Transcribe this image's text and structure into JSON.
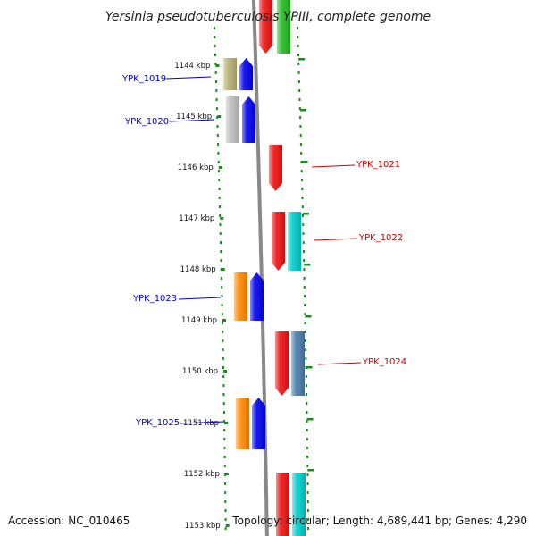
{
  "title": "Yersinia pseudotuberculosis YPIII, complete genome",
  "footer": {
    "accession": "Accession: NC_010465",
    "topology": "Topology: circular; Length: 4,689,441 bp; Genes: 4,290"
  },
  "ticks": [
    "1144 kbp",
    "1145 kbp",
    "1146 kbp",
    "1147 kbp",
    "1148 kbp",
    "1149 kbp",
    "1150 kbp",
    "1151 kbp",
    "1152 kbp",
    "1153 kbp"
  ],
  "colors": {
    "left_label": "#0000cc",
    "right_label": "#cc0000",
    "ruler": "#1a8c1a",
    "backbone": "#888888",
    "red": "#ee1111",
    "blue": "#0000ee",
    "green": "#22bb22",
    "olive": "#b5b070",
    "gray": "#bdbdbd",
    "orange": "#ff8800",
    "cyan": "#00cccc",
    "steelblue": "#4a7aaa"
  },
  "genes": [
    {
      "label": "",
      "side": "right",
      "strand": "minus",
      "pair": [
        "red",
        "green"
      ]
    },
    {
      "label": "YPK_1019",
      "side": "left",
      "strand": "plus",
      "pair": [
        "olive",
        "blue"
      ]
    },
    {
      "label": "YPK_1020",
      "side": "left",
      "strand": "plus",
      "pair": [
        "gray",
        "blue"
      ]
    },
    {
      "label": "YPK_1021",
      "side": "right",
      "strand": "minus",
      "pair": [
        "red"
      ]
    },
    {
      "label": "YPK_1022",
      "side": "right",
      "strand": "minus",
      "pair": [
        "red",
        "cyan"
      ]
    },
    {
      "label": "YPK_1023",
      "side": "left",
      "strand": "plus",
      "pair": [
        "orange",
        "blue"
      ]
    },
    {
      "label": "YPK_1024",
      "side": "right",
      "strand": "minus",
      "pair": [
        "red",
        "steelblue"
      ]
    },
    {
      "label": "YPK_1025",
      "side": "left",
      "strand": "plus",
      "pair": [
        "orange",
        "blue"
      ]
    },
    {
      "label": "",
      "side": "right",
      "strand": "minus",
      "pair": [
        "red",
        "cyan"
      ]
    }
  ]
}
